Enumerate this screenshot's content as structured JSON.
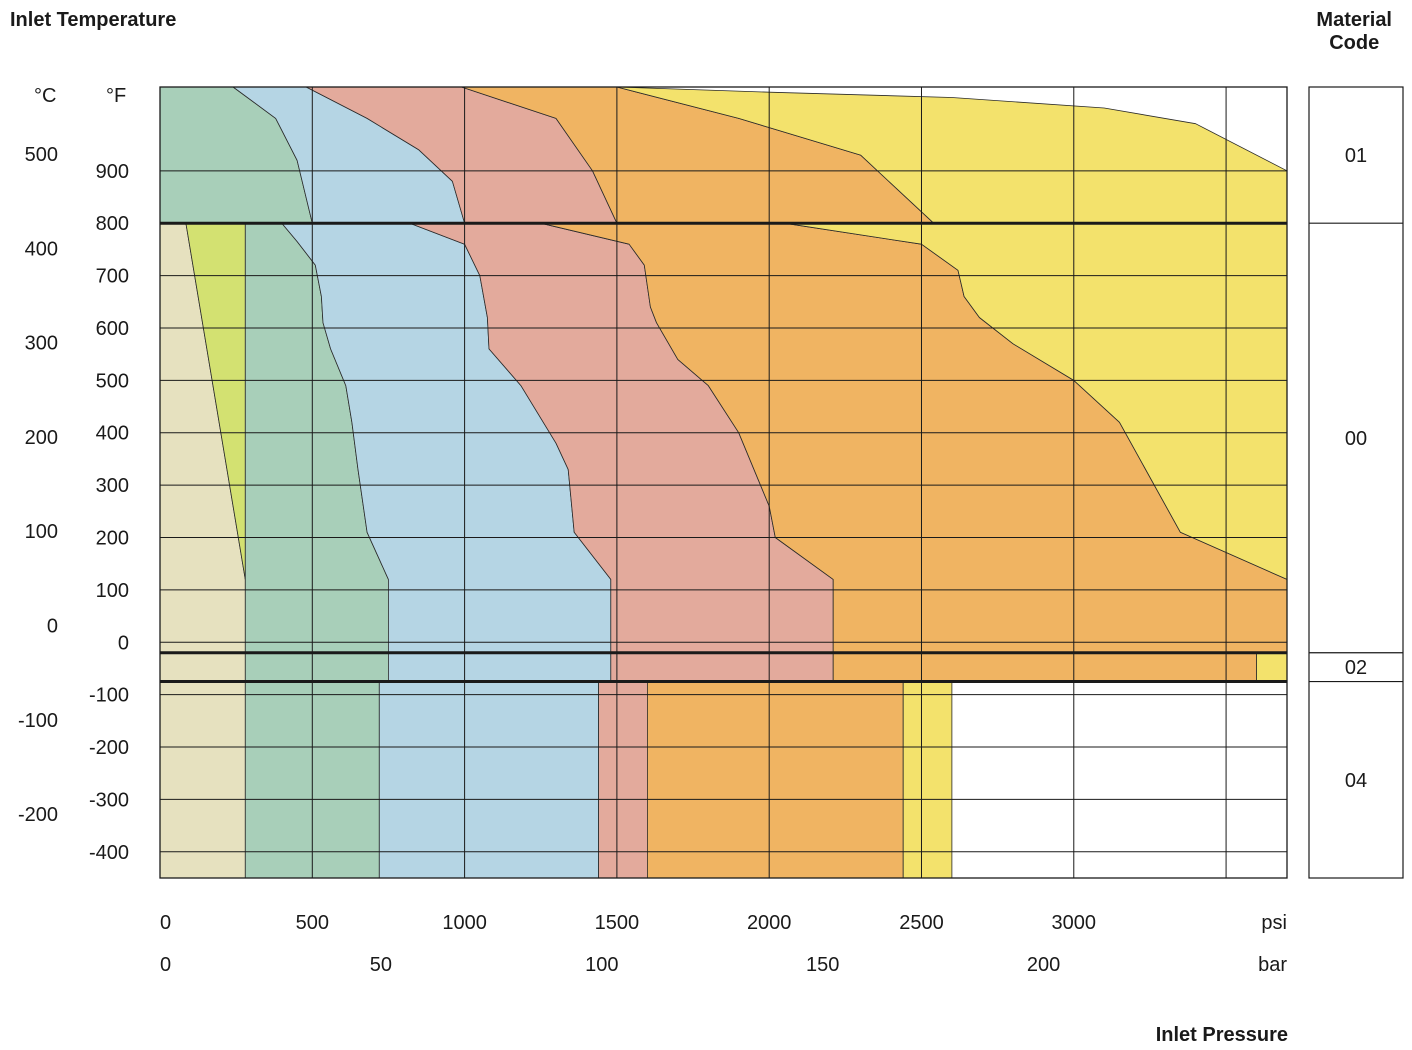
{
  "titles": {
    "inlet_temperature": "Inlet Temperature",
    "material_code_line1": "Material",
    "material_code_line2": "Code",
    "inlet_pressure": "Inlet Pressure"
  },
  "units": {
    "c": "°C",
    "f": "°F",
    "psi": "psi",
    "bar": "bar"
  },
  "chart_data": {
    "type": "area",
    "title": "",
    "ylabel": "Inlet Temperature",
    "xlabel": "Inlet Pressure",
    "x_unit_primary": "psi",
    "x_unit_secondary": "bar",
    "y_unit_primary": "°F",
    "y_unit_secondary": "°C",
    "xlim_psi": [
      0,
      3700
    ],
    "ylim_f": [
      -450,
      1060
    ],
    "grid": true,
    "psi_ticks": [
      0,
      500,
      1000,
      1500,
      2000,
      2500,
      3000
    ],
    "psi_tick_labels": [
      "0",
      "500",
      "1000",
      "1500",
      "2000",
      "2500",
      "3000"
    ],
    "bar_ticks": [
      0,
      50,
      100,
      150,
      200
    ],
    "bar_tick_labels": [
      "0",
      "50",
      "100",
      "150",
      "200"
    ],
    "f_ticks": [
      900,
      800,
      700,
      600,
      500,
      400,
      300,
      200,
      100,
      0,
      -100,
      -200,
      -300,
      -400
    ],
    "f_tick_labels": [
      "900",
      "800",
      "700",
      "600",
      "500",
      "400",
      "300",
      "200",
      "100",
      "0",
      "-100",
      "-200",
      "-300",
      "-400"
    ],
    "c_ticks": [
      500,
      400,
      300,
      200,
      100,
      0,
      -100,
      -200
    ],
    "c_tick_labels": [
      "500",
      "400",
      "300",
      "200",
      "100",
      "0",
      "-100",
      "-200"
    ],
    "zone_colors": [
      "#e6e1bf",
      "#d3e171",
      "#a8cfb9",
      "#b5d5e4",
      "#e3aa9c",
      "#f0b462",
      "#f3e26c"
    ],
    "material_bands": [
      {
        "code": "01",
        "f_range": [
          800,
          1060
        ]
      },
      {
        "code": "00",
        "f_range": [
          -20,
          800
        ]
      },
      {
        "code": "02",
        "f_range": [
          -75,
          -20
        ]
      },
      {
        "code": "04",
        "f_range": [
          -450,
          -75
        ]
      }
    ],
    "zones": [
      {
        "band": "00",
        "color": "#e6e1bf",
        "points": [
          [
            0,
            800
          ],
          [
            85,
            800
          ],
          [
            280,
            120
          ],
          [
            280,
            -20
          ],
          [
            0,
            -20
          ]
        ]
      },
      {
        "band": "00",
        "color": "#d3e171",
        "points": [
          [
            85,
            800
          ],
          [
            280,
            800
          ],
          [
            280,
            120
          ]
        ]
      },
      {
        "band": "00",
        "color": "#a8cfb9",
        "points": [
          [
            280,
            800
          ],
          [
            400,
            800
          ],
          [
            450,
            765
          ],
          [
            510,
            720
          ],
          [
            530,
            660
          ],
          [
            535,
            610
          ],
          [
            560,
            560
          ],
          [
            610,
            490
          ],
          [
            630,
            420
          ],
          [
            650,
            330
          ],
          [
            680,
            210
          ],
          [
            750,
            120
          ],
          [
            750,
            -20
          ],
          [
            280,
            -20
          ]
        ]
      },
      {
        "band": "00",
        "color": "#b5d5e4",
        "points": [
          [
            400,
            800
          ],
          [
            820,
            800
          ],
          [
            1000,
            760
          ],
          [
            1050,
            700
          ],
          [
            1075,
            620
          ],
          [
            1080,
            560
          ],
          [
            1185,
            490
          ],
          [
            1300,
            380
          ],
          [
            1340,
            330
          ],
          [
            1360,
            210
          ],
          [
            1480,
            120
          ],
          [
            1480,
            -20
          ],
          [
            750,
            -20
          ],
          [
            750,
            120
          ],
          [
            680,
            210
          ],
          [
            650,
            330
          ],
          [
            630,
            420
          ],
          [
            610,
            490
          ],
          [
            560,
            560
          ],
          [
            535,
            610
          ],
          [
            530,
            660
          ],
          [
            510,
            720
          ],
          [
            450,
            765
          ]
        ]
      },
      {
        "band": "00",
        "color": "#e3aa9c",
        "points": [
          [
            820,
            800
          ],
          [
            1250,
            800
          ],
          [
            1540,
            760
          ],
          [
            1590,
            720
          ],
          [
            1610,
            640
          ],
          [
            1630,
            610
          ],
          [
            1700,
            540
          ],
          [
            1800,
            490
          ],
          [
            1900,
            400
          ],
          [
            2000,
            260
          ],
          [
            2020,
            200
          ],
          [
            2210,
            120
          ],
          [
            2210,
            -20
          ],
          [
            1480,
            -20
          ],
          [
            1480,
            120
          ],
          [
            1360,
            210
          ],
          [
            1340,
            330
          ],
          [
            1300,
            380
          ],
          [
            1185,
            490
          ],
          [
            1080,
            560
          ],
          [
            1075,
            620
          ],
          [
            1050,
            700
          ],
          [
            1000,
            760
          ]
        ]
      },
      {
        "band": "00",
        "color": "#f0b462",
        "points": [
          [
            1250,
            800
          ],
          [
            2050,
            800
          ],
          [
            2500,
            760
          ],
          [
            2620,
            710
          ],
          [
            2640,
            660
          ],
          [
            2690,
            620
          ],
          [
            2800,
            570
          ],
          [
            3000,
            500
          ],
          [
            3150,
            420
          ],
          [
            3350,
            210
          ],
          [
            3700,
            120
          ],
          [
            3700,
            -20
          ],
          [
            2210,
            -20
          ],
          [
            2210,
            120
          ],
          [
            2020,
            200
          ],
          [
            2000,
            260
          ],
          [
            1900,
            400
          ],
          [
            1800,
            490
          ],
          [
            1700,
            540
          ],
          [
            1630,
            610
          ],
          [
            1610,
            640
          ],
          [
            1590,
            720
          ],
          [
            1540,
            760
          ]
        ]
      },
      {
        "band": "00",
        "color": "#f3e26c",
        "points": [
          [
            2050,
            800
          ],
          [
            3700,
            800
          ],
          [
            3700,
            120
          ],
          [
            3350,
            210
          ],
          [
            3150,
            420
          ],
          [
            3000,
            500
          ],
          [
            2800,
            570
          ],
          [
            2690,
            620
          ],
          [
            2640,
            660
          ],
          [
            2620,
            710
          ],
          [
            2500,
            760
          ]
        ]
      },
      {
        "band": "01",
        "color": "#a8cfb9",
        "points": [
          [
            0,
            1060
          ],
          [
            240,
            1060
          ],
          [
            380,
            1000
          ],
          [
            450,
            920
          ],
          [
            500,
            800
          ],
          [
            0,
            800
          ]
        ]
      },
      {
        "band": "01",
        "color": "#b5d5e4",
        "points": [
          [
            240,
            1060
          ],
          [
            480,
            1060
          ],
          [
            680,
            1000
          ],
          [
            850,
            940
          ],
          [
            960,
            880
          ],
          [
            1000,
            800
          ],
          [
            500,
            800
          ],
          [
            450,
            920
          ],
          [
            380,
            1000
          ]
        ]
      },
      {
        "band": "01",
        "color": "#e3aa9c",
        "points": [
          [
            480,
            1060
          ],
          [
            990,
            1060
          ],
          [
            1300,
            1000
          ],
          [
            1420,
            900
          ],
          [
            1500,
            800
          ],
          [
            1000,
            800
          ],
          [
            960,
            880
          ],
          [
            850,
            940
          ],
          [
            680,
            1000
          ]
        ]
      },
      {
        "band": "01",
        "color": "#f0b462",
        "points": [
          [
            990,
            1060
          ],
          [
            1500,
            1060
          ],
          [
            1900,
            1000
          ],
          [
            2300,
            930
          ],
          [
            2540,
            800
          ],
          [
            1500,
            800
          ],
          [
            1420,
            900
          ],
          [
            1300,
            1000
          ]
        ]
      },
      {
        "band": "01",
        "color": "#f3e26c",
        "points": [
          [
            1500,
            1060
          ],
          [
            2000,
            1050
          ],
          [
            2600,
            1040
          ],
          [
            3100,
            1020
          ],
          [
            3400,
            990
          ],
          [
            3700,
            900
          ],
          [
            3700,
            800
          ],
          [
            2540,
            800
          ],
          [
            2300,
            930
          ],
          [
            1900,
            1000
          ]
        ]
      },
      {
        "band": "02",
        "color": "#e6e1bf",
        "points": [
          [
            0,
            -20
          ],
          [
            280,
            -20
          ],
          [
            280,
            -75
          ],
          [
            0,
            -75
          ]
        ]
      },
      {
        "band": "02",
        "color": "#a8cfb9",
        "points": [
          [
            280,
            -20
          ],
          [
            750,
            -20
          ],
          [
            750,
            -75
          ],
          [
            280,
            -75
          ]
        ]
      },
      {
        "band": "02",
        "color": "#b5d5e4",
        "points": [
          [
            750,
            -20
          ],
          [
            1480,
            -20
          ],
          [
            1480,
            -75
          ],
          [
            750,
            -75
          ]
        ]
      },
      {
        "band": "02",
        "color": "#e3aa9c",
        "points": [
          [
            1480,
            -20
          ],
          [
            2210,
            -20
          ],
          [
            2210,
            -75
          ],
          [
            1480,
            -75
          ]
        ]
      },
      {
        "band": "02",
        "color": "#f0b462",
        "points": [
          [
            2210,
            -20
          ],
          [
            3600,
            -20
          ],
          [
            3600,
            -75
          ],
          [
            2210,
            -75
          ]
        ]
      },
      {
        "band": "02",
        "color": "#f3e26c",
        "points": [
          [
            3600,
            -20
          ],
          [
            3700,
            -20
          ],
          [
            3700,
            -75
          ],
          [
            3600,
            -75
          ]
        ]
      },
      {
        "band": "04",
        "color": "#e6e1bf",
        "points": [
          [
            0,
            -75
          ],
          [
            280,
            -75
          ],
          [
            280,
            -450
          ],
          [
            0,
            -450
          ]
        ]
      },
      {
        "band": "04",
        "color": "#a8cfb9",
        "points": [
          [
            280,
            -75
          ],
          [
            720,
            -75
          ],
          [
            720,
            -450
          ],
          [
            280,
            -450
          ]
        ]
      },
      {
        "band": "04",
        "color": "#b5d5e4",
        "points": [
          [
            720,
            -75
          ],
          [
            1440,
            -75
          ],
          [
            1440,
            -450
          ],
          [
            720,
            -450
          ]
        ]
      },
      {
        "band": "04",
        "color": "#e3aa9c",
        "points": [
          [
            1440,
            -75
          ],
          [
            1600,
            -75
          ],
          [
            1600,
            -450
          ],
          [
            1440,
            -450
          ]
        ]
      },
      {
        "band": "04",
        "color": "#f0b462",
        "points": [
          [
            1600,
            -75
          ],
          [
            2440,
            -75
          ],
          [
            2440,
            -450
          ],
          [
            1600,
            -450
          ]
        ]
      },
      {
        "band": "04",
        "color": "#f3e26c",
        "points": [
          [
            2440,
            -75
          ],
          [
            2600,
            -75
          ],
          [
            2600,
            -450
          ],
          [
            2440,
            -450
          ]
        ]
      }
    ]
  }
}
